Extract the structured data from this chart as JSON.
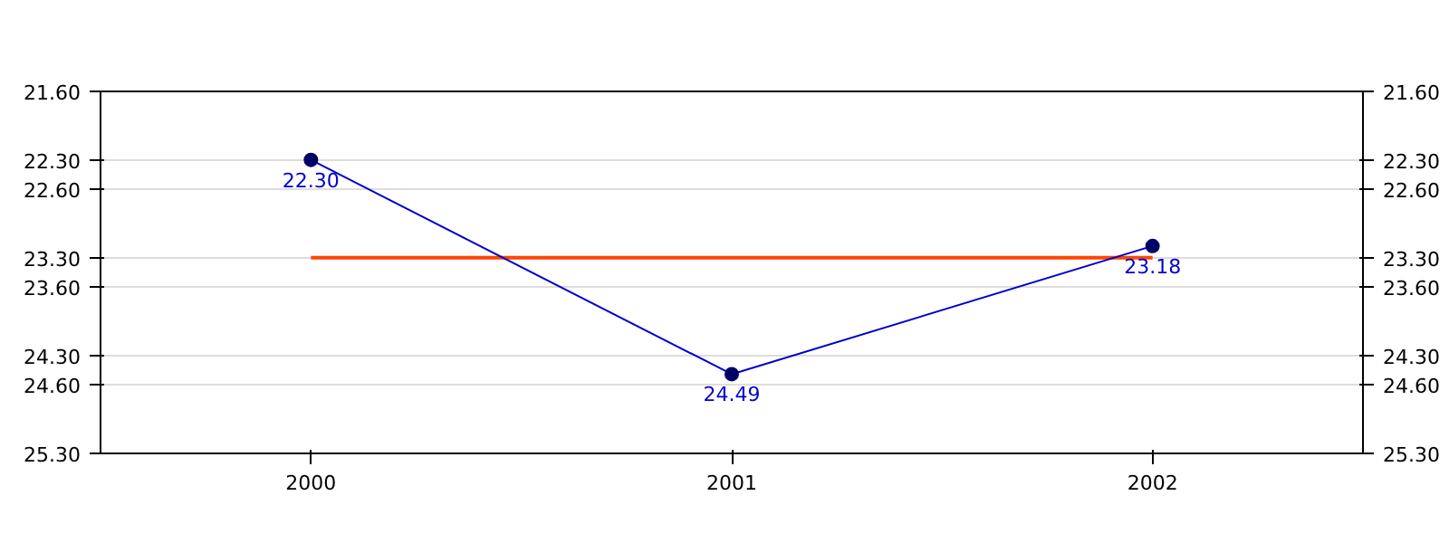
{
  "chart_data": {
    "type": "line",
    "categories": [
      "2000",
      "2001",
      "2002"
    ],
    "series": [
      {
        "color": "#0000cc",
        "values": [
          22.3,
          24.49,
          23.18
        ],
        "value_labels": [
          "22.30",
          "24.49",
          "23.18"
        ]
      }
    ],
    "marker": "circle",
    "grid": "y",
    "ylim": [
      25.3,
      21.6
    ],
    "yticks": [
      {
        "value": 21.6,
        "label": "21.60"
      },
      {
        "value": 22.3,
        "label": "22.30"
      },
      {
        "value": 22.6,
        "label": "22.60"
      },
      {
        "value": 23.3,
        "label": "23.30"
      },
      {
        "value": 23.6,
        "label": "23.60"
      },
      {
        "value": 24.3,
        "label": "24.30"
      },
      {
        "value": 24.6,
        "label": "24.60"
      },
      {
        "value": 25.3,
        "label": "25.30"
      }
    ],
    "y2lim": [
      25.3,
      21.6
    ],
    "y2ticks": [
      {
        "value": 21.6,
        "label": "21.60"
      },
      {
        "value": 22.3,
        "label": "22.30"
      },
      {
        "value": 22.6,
        "label": "22.60"
      },
      {
        "value": 23.3,
        "label": "23.30"
      },
      {
        "value": 23.6,
        "label": "23.60"
      },
      {
        "value": 24.3,
        "label": "24.30"
      },
      {
        "value": 24.6,
        "label": "24.60"
      },
      {
        "value": 25.3,
        "label": "25.30"
      }
    ],
    "ref_lines": [
      {
        "axis": "y",
        "value": 23.3,
        "color": "#ff4500"
      }
    ]
  }
}
